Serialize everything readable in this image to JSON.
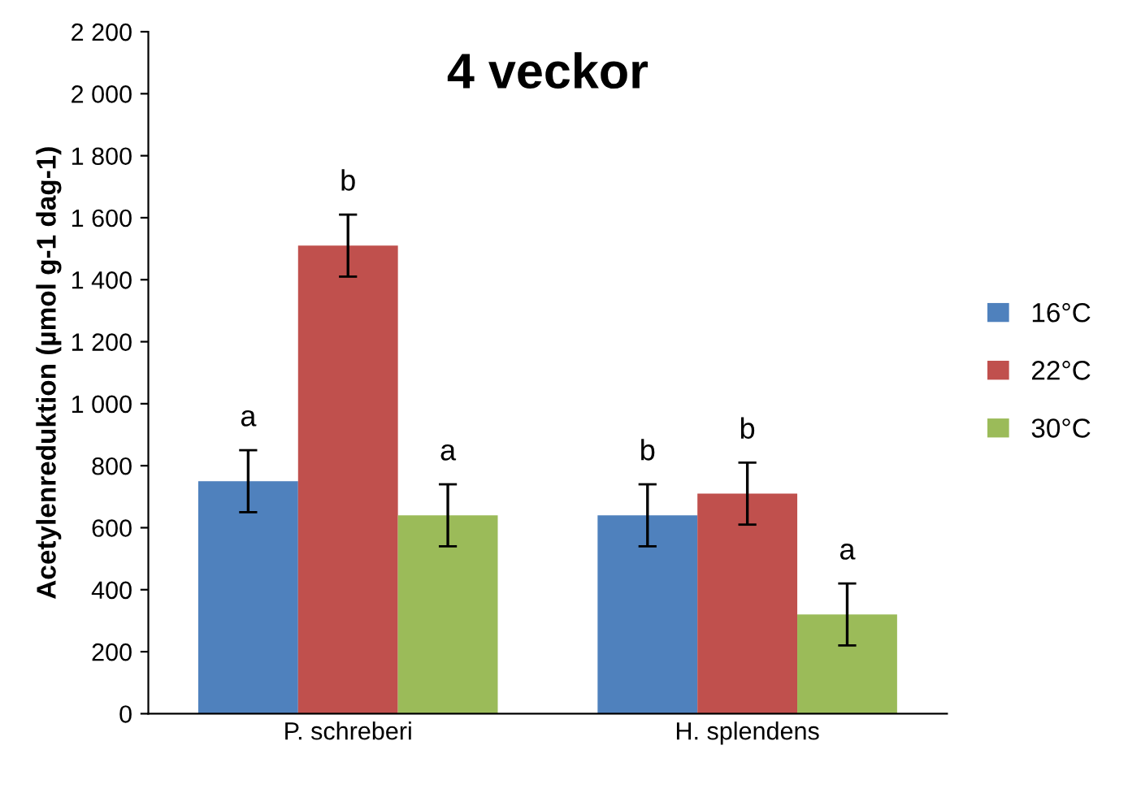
{
  "chart_data": {
    "type": "bar",
    "title": "4 veckor",
    "ylabel": "Acetylenreduktion (µmol g-1 dag-1)",
    "categories": [
      "P. schreberi",
      "H. splendens"
    ],
    "series": [
      {
        "name": "16°C",
        "color": "#4f81bd",
        "values": [
          750,
          640
        ],
        "errors": [
          100,
          100
        ],
        "value_labels": [
          "a",
          "b"
        ]
      },
      {
        "name": "22°C",
        "color": "#c0504d",
        "values": [
          1510,
          710
        ],
        "errors": [
          100,
          100
        ],
        "value_labels": [
          "b",
          "b"
        ]
      },
      {
        "name": "30°C",
        "color": "#9bbb59",
        "values": [
          640,
          320
        ],
        "errors": [
          100,
          100
        ],
        "value_labels": [
          "a",
          "a"
        ]
      }
    ],
    "ylim": [
      0,
      2200
    ],
    "yticks": [
      0,
      200,
      400,
      600,
      800,
      {
        "value": 1000,
        "label": "1 000"
      },
      {
        "value": 1200,
        "label": "1 200"
      },
      {
        "value": 1400,
        "label": "1 400"
      },
      {
        "value": 1600,
        "label": "1 600"
      },
      {
        "value": 1800,
        "label": "1 800"
      },
      {
        "value": 2000,
        "label": "2 000"
      },
      {
        "value": 2200,
        "label": "2 200"
      }
    ],
    "grid": false,
    "legend": "right"
  }
}
